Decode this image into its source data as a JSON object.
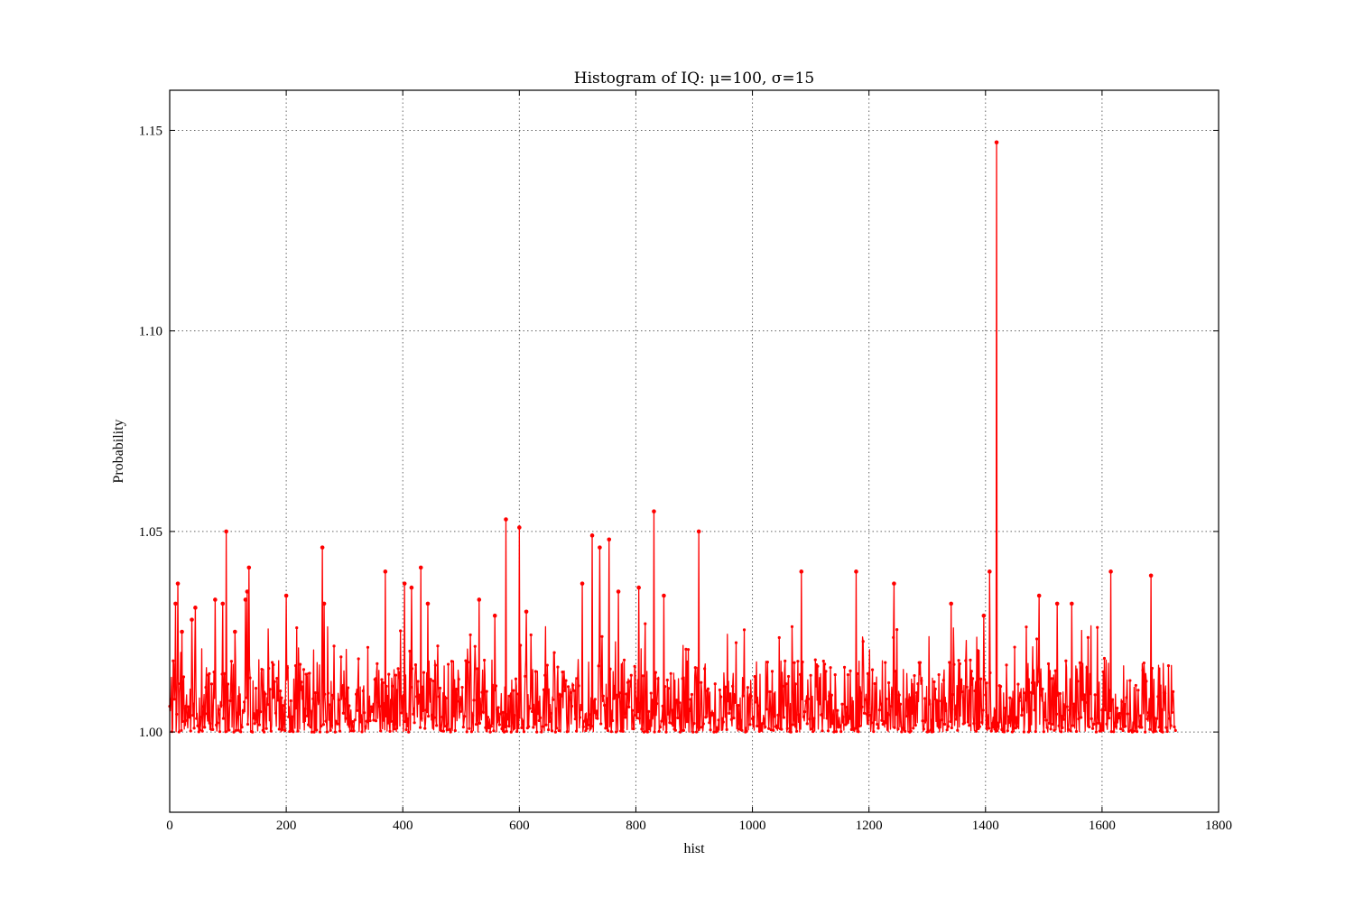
{
  "chart_data": {
    "type": "line",
    "title": "Histogram of IQ: μ=100, σ=15",
    "xlabel": "hist",
    "ylabel": "Probability",
    "xlim": [
      0,
      1800
    ],
    "ylim": [
      0.98,
      1.16
    ],
    "xticks": [
      0,
      200,
      400,
      600,
      800,
      1000,
      1200,
      1400,
      1600,
      1800
    ],
    "xtick_labels": [
      "0",
      "200",
      "400",
      "600",
      "800",
      "1000",
      "1200",
      "1400",
      "1600",
      "1800"
    ],
    "yticks": [
      1.0,
      1.05,
      1.1,
      1.15
    ],
    "ytick_labels": [
      "1.00",
      "1.05",
      "1.10",
      "1.15"
    ],
    "grid": true,
    "series": [
      {
        "color": "#ff0000",
        "marker": "dot",
        "x_range": [
          0,
          1727
        ],
        "baseline_range": [
          1.0,
          1.018
        ],
        "peaks": [
          {
            "x": 10,
            "y": 1.032
          },
          {
            "x": 14,
            "y": 1.037
          },
          {
            "x": 21,
            "y": 1.025
          },
          {
            "x": 38,
            "y": 1.028
          },
          {
            "x": 44,
            "y": 1.031
          },
          {
            "x": 78,
            "y": 1.033
          },
          {
            "x": 91,
            "y": 1.032
          },
          {
            "x": 97,
            "y": 1.05
          },
          {
            "x": 112,
            "y": 1.025
          },
          {
            "x": 130,
            "y": 1.033
          },
          {
            "x": 133,
            "y": 1.035
          },
          {
            "x": 136,
            "y": 1.041
          },
          {
            "x": 200,
            "y": 1.034
          },
          {
            "x": 262,
            "y": 1.046
          },
          {
            "x": 265,
            "y": 1.032
          },
          {
            "x": 370,
            "y": 1.04
          },
          {
            "x": 403,
            "y": 1.037
          },
          {
            "x": 415,
            "y": 1.036
          },
          {
            "x": 431,
            "y": 1.041
          },
          {
            "x": 443,
            "y": 1.032
          },
          {
            "x": 531,
            "y": 1.033
          },
          {
            "x": 558,
            "y": 1.029
          },
          {
            "x": 577,
            "y": 1.053
          },
          {
            "x": 600,
            "y": 1.051
          },
          {
            "x": 612,
            "y": 1.03
          },
          {
            "x": 708,
            "y": 1.037
          },
          {
            "x": 725,
            "y": 1.049
          },
          {
            "x": 738,
            "y": 1.046
          },
          {
            "x": 754,
            "y": 1.048
          },
          {
            "x": 770,
            "y": 1.035
          },
          {
            "x": 805,
            "y": 1.036
          },
          {
            "x": 831,
            "y": 1.055
          },
          {
            "x": 848,
            "y": 1.034
          },
          {
            "x": 908,
            "y": 1.05
          },
          {
            "x": 1084,
            "y": 1.04
          },
          {
            "x": 1178,
            "y": 1.04
          },
          {
            "x": 1243,
            "y": 1.037
          },
          {
            "x": 1341,
            "y": 1.032
          },
          {
            "x": 1397,
            "y": 1.029
          },
          {
            "x": 1407,
            "y": 1.04
          },
          {
            "x": 1419,
            "y": 1.147
          },
          {
            "x": 1492,
            "y": 1.034
          },
          {
            "x": 1523,
            "y": 1.032
          },
          {
            "x": 1548,
            "y": 1.032
          },
          {
            "x": 1615,
            "y": 1.04
          },
          {
            "x": 1684,
            "y": 1.039
          }
        ]
      }
    ]
  }
}
